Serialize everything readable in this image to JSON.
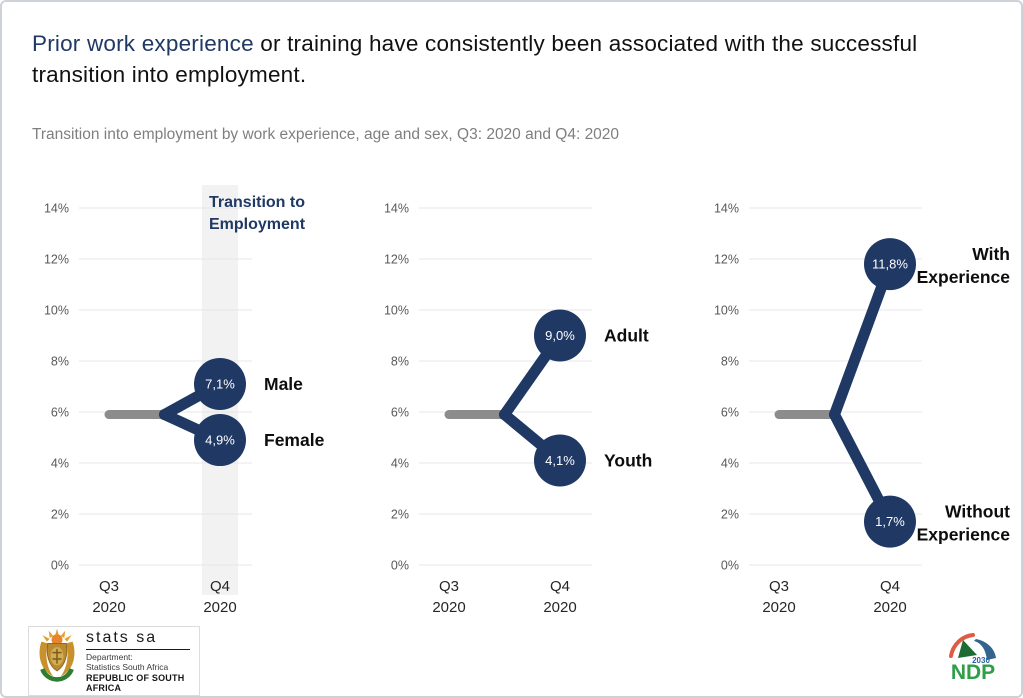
{
  "header": {
    "title_highlight": "Prior work experience",
    "title_rest": " or training have consistently been associated with the successful transition into employment.",
    "subtitle": "Transition into employment by work experience, age and sex, Q3: 2020 and Q4: 2020"
  },
  "colors": {
    "accent": "#1f3864",
    "start_line": "#8c8c8c",
    "band": "#f2f2f2",
    "grid": "#e7e7e7",
    "title_highlight": "#1f3864",
    "subtitle_gray": "#7f7f7f"
  },
  "chart_data": [
    {
      "type": "line",
      "panel_label": "Transition to Employment",
      "categories": [
        "Q3 2020",
        "Q4 2020"
      ],
      "ylim": [
        0,
        14
      ],
      "yticks": [
        "0%",
        "2%",
        "4%",
        "6%",
        "8%",
        "10%",
        "12%",
        "14%"
      ],
      "grid": true,
      "start_value": 5.9,
      "highlight_band": true,
      "series": [
        {
          "name": "Male",
          "value": 7.1,
          "display": "7,1%"
        },
        {
          "name": "Female",
          "value": 4.9,
          "display": "4,9%"
        }
      ]
    },
    {
      "type": "line",
      "panel_label": "",
      "categories": [
        "Q3 2020",
        "Q4 2020"
      ],
      "ylim": [
        0,
        14
      ],
      "yticks": [
        "0%",
        "2%",
        "4%",
        "6%",
        "8%",
        "10%",
        "12%",
        "14%"
      ],
      "grid": true,
      "start_value": 5.9,
      "highlight_band": false,
      "series": [
        {
          "name": "Adult",
          "value": 9.0,
          "display": "9,0%"
        },
        {
          "name": "Youth",
          "value": 4.1,
          "display": "4,1%"
        }
      ]
    },
    {
      "type": "line",
      "panel_label": "",
      "categories": [
        "Q3 2020",
        "Q4 2020"
      ],
      "ylim": [
        0,
        14
      ],
      "yticks": [
        "0%",
        "2%",
        "4%",
        "6%",
        "8%",
        "10%",
        "12%",
        "14%"
      ],
      "grid": true,
      "start_value": 5.9,
      "highlight_band": false,
      "series": [
        {
          "name": "With Experience",
          "value": 11.8,
          "display": "11,8%"
        },
        {
          "name": "Without Experience",
          "value": 1.7,
          "display": "1,7%"
        }
      ]
    }
  ],
  "footer": {
    "statssa": {
      "brand": "stats sa",
      "dept": "Department:",
      "org": "Statistics South Africa",
      "country": "REPUBLIC OF SOUTH AFRICA"
    },
    "ndp": {
      "acronym": "NDP",
      "year": "2030"
    }
  }
}
